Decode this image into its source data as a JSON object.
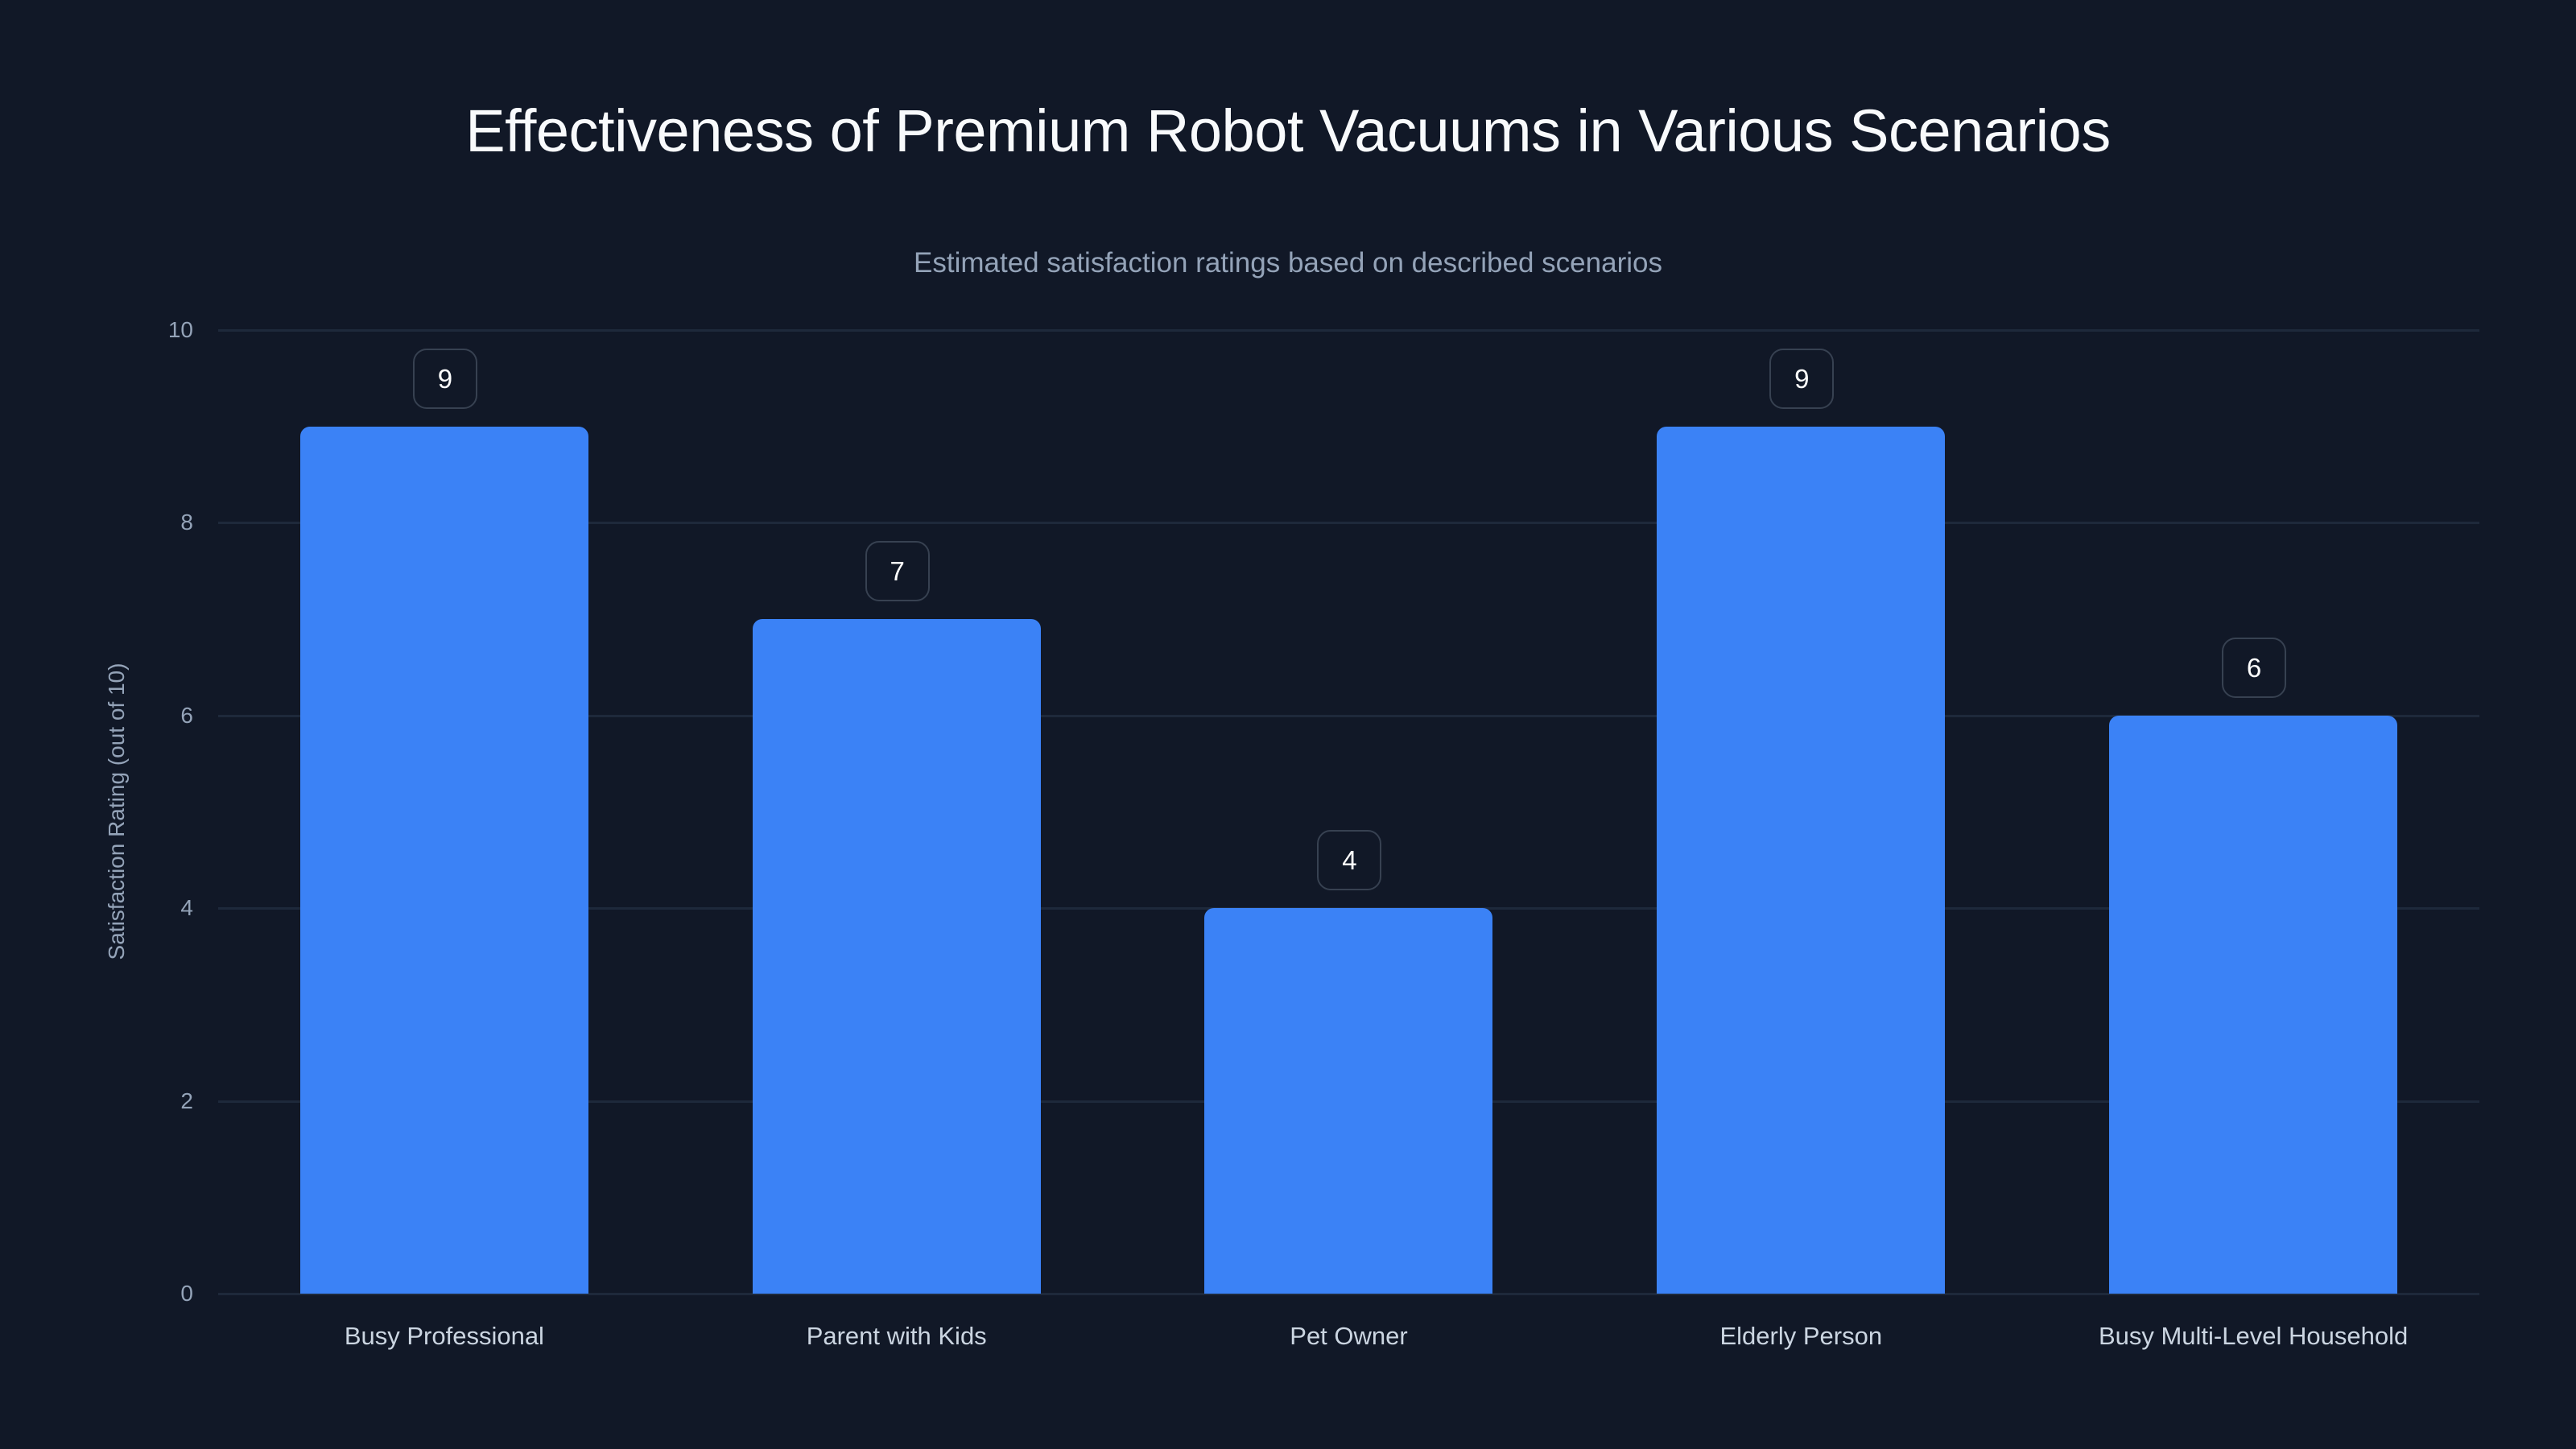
{
  "chart_data": {
    "type": "bar",
    "title": "Effectiveness of Premium Robot Vacuums in Various Scenarios",
    "subtitle": "Estimated satisfaction ratings based on described scenarios",
    "xlabel": "",
    "ylabel": "Satisfaction Rating (out of 10)",
    "ylim": [
      0,
      10
    ],
    "yticks": [
      "0",
      "2",
      "4",
      "6",
      "8",
      "10"
    ],
    "grid": true,
    "legend": null,
    "bar_color": "#3b82f6",
    "categories": [
      "Busy Professional",
      "Parent with Kids",
      "Pet Owner",
      "Elderly Person",
      "Busy Multi-Level Household"
    ],
    "values": [
      9,
      7,
      4,
      9,
      6
    ],
    "value_labels": [
      "9",
      "7",
      "4",
      "9",
      "6"
    ]
  },
  "colors": {
    "background": "#111827",
    "bar": "#3b82f6",
    "gridline": "#1e293b",
    "title": "#f8fafc",
    "muted_text": "#94a3b8",
    "category_text": "#cbd5e1",
    "label_border": "#374151"
  }
}
